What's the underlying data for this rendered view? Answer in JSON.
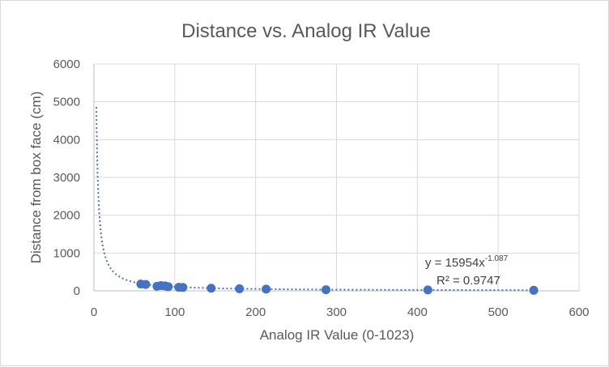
{
  "chart_data": {
    "type": "scatter",
    "title": "Distance vs. Analog IR Value",
    "xlabel": "Analog IR Value (0-1023)",
    "ylabel": "Distance from box face (cm)",
    "xlim": [
      0,
      600
    ],
    "ylim": [
      0,
      6000
    ],
    "x_ticks": [
      0,
      100,
      200,
      300,
      400,
      500,
      600
    ],
    "y_ticks": [
      0,
      1000,
      2000,
      3000,
      4000,
      5000,
      6000
    ],
    "grid": true,
    "legend": "none",
    "marker_color": "#4472c4",
    "trendline_color": "#4472c4",
    "points": [
      {
        "x": 58,
        "y": 180
      },
      {
        "x": 64,
        "y": 170
      },
      {
        "x": 78,
        "y": 120
      },
      {
        "x": 83,
        "y": 140
      },
      {
        "x": 88,
        "y": 130
      },
      {
        "x": 92,
        "y": 110
      },
      {
        "x": 105,
        "y": 95
      },
      {
        "x": 110,
        "y": 90
      },
      {
        "x": 145,
        "y": 70
      },
      {
        "x": 180,
        "y": 55
      },
      {
        "x": 213,
        "y": 45
      },
      {
        "x": 287,
        "y": 30
      },
      {
        "x": 413,
        "y": 25
      },
      {
        "x": 544,
        "y": 15
      }
    ],
    "trendline": {
      "type": "power",
      "coefficient": 15954,
      "exponent": -1.087,
      "equation_base": "y = 15954x",
      "equation_exponent": "-1.087",
      "r_squared_label": "R² = 0.9747"
    }
  }
}
